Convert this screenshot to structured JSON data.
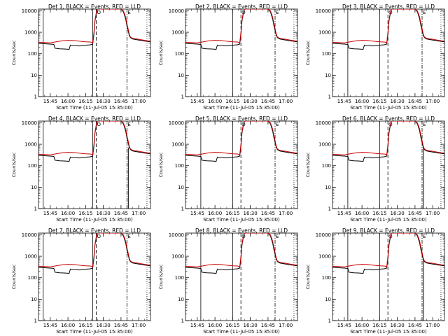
{
  "chart_data": {
    "type": "line",
    "shared": {
      "ylabel": "Counts/sec",
      "xlabel": "Start Time (11-Jul-05 15:35:00)",
      "yscale": "log",
      "ylim": [
        1,
        12000
      ],
      "y_ticks": [
        1,
        10,
        100,
        1000,
        10000
      ],
      "y_tick_labels": [
        "1",
        "10",
        "100",
        "1000",
        "10000"
      ],
      "xlim_minutes": [
        0,
        95
      ],
      "x_tick_minutes": [
        10,
        25,
        40,
        55,
        70,
        85
      ],
      "x_tick_labels": [
        "15:45",
        "16:00",
        "16:15",
        "16:30",
        "16:45",
        "17:00"
      ],
      "grid": false,
      "marker_labels": [
        "O",
        "E"
      ],
      "colors": {
        "events": "#000000",
        "lld": "#cc0000",
        "axes": "#000000"
      }
    },
    "panels": [
      {
        "title": "Det 1, BLACK = Events, RED = LLD",
        "solid": [
          4,
          46
        ],
        "dashed": [
          49
        ],
        "dashdot": [
          75
        ],
        "dotted": [
          92
        ],
        "events_dip": 20
      },
      {
        "title": "Det 2, BLACK = Events, RED = LLD",
        "solid": [
          13,
          40
        ],
        "dashed": [
          47
        ],
        "dashdot": [
          76
        ],
        "dotted": [
          92
        ],
        "events_dip": 20
      },
      {
        "title": "Det 3, BLACK = Events, RED = LLD",
        "solid": [
          13,
          40
        ],
        "dashed": [
          47
        ],
        "dashdot": [
          76
        ],
        "dotted": [
          92
        ],
        "events_dip": 20
      },
      {
        "title": "Det 4, BLACK = Events, RED = LLD",
        "solid": [
          4,
          46
        ],
        "dashed": [
          49
        ],
        "dashdot": [
          75
        ],
        "dotted": [
          92
        ],
        "events_dip": 20
      },
      {
        "title": "Det 5, BLACK = Events, RED = LLD",
        "solid": [
          13,
          40
        ],
        "dashed": [
          47
        ],
        "dashdot": [
          76
        ],
        "dotted": [
          92
        ],
        "events_dip": 20
      },
      {
        "title": "Det 6, BLACK = Events, RED = LLD",
        "solid": [
          13,
          40
        ],
        "dashed": [
          47
        ],
        "dashdot": [
          76
        ],
        "dotted": [
          92
        ],
        "events_dip": 20
      },
      {
        "title": "Det 7, BLACK = Events, RED = LLD",
        "solid": [
          4,
          46
        ],
        "dashed": [
          49
        ],
        "dashdot": [
          75
        ],
        "dotted": [
          92
        ],
        "events_dip": 20
      },
      {
        "title": "Det 8, BLACK = Events, RED = LLD",
        "solid": [
          13,
          40
        ],
        "dashed": [
          47
        ],
        "dashdot": [
          76
        ],
        "dotted": [
          92
        ],
        "events_dip": 20
      },
      {
        "title": "Det 9, BLACK = Events, RED = LLD",
        "solid": [
          13,
          40
        ],
        "dashed": [
          47
        ],
        "dashdot": [
          76
        ],
        "dotted": [
          92
        ],
        "events_dip": 20
      }
    ],
    "series": [
      {
        "key": "lld",
        "points": [
          [
            0,
            340
          ],
          [
            5,
            330
          ],
          [
            10,
            320
          ],
          [
            15,
            360
          ],
          [
            20,
            400
          ],
          [
            25,
            420
          ],
          [
            30,
            410
          ],
          [
            35,
            380
          ],
          [
            40,
            360
          ],
          [
            44,
            350
          ],
          [
            46,
            330
          ],
          [
            47,
            1000
          ],
          [
            48,
            4000
          ],
          [
            49,
            8000
          ],
          [
            50,
            12000
          ],
          [
            55,
            12000
          ],
          [
            60,
            12000
          ],
          [
            65,
            12000
          ],
          [
            70,
            12000
          ],
          [
            72,
            10000
          ],
          [
            74,
            5000
          ],
          [
            75,
            2500
          ],
          [
            76,
            1500
          ],
          [
            77,
            800
          ],
          [
            78,
            600
          ],
          [
            80,
            520
          ],
          [
            85,
            470
          ],
          [
            90,
            420
          ],
          [
            95,
            380
          ]
        ]
      },
      {
        "key": "events",
        "points": [
          [
            0,
            300
          ],
          [
            5,
            290
          ],
          [
            10,
            280
          ],
          [
            13,
            270
          ],
          [
            14,
            180
          ],
          [
            18,
            170
          ],
          [
            22,
            165
          ],
          [
            26,
            160
          ],
          [
            27,
            250
          ],
          [
            30,
            240
          ],
          [
            35,
            230
          ],
          [
            40,
            250
          ],
          [
            44,
            260
          ],
          [
            46,
            280
          ],
          [
            47,
            800
          ],
          [
            48,
            3500
          ],
          [
            49,
            7000
          ],
          [
            50,
            12000
          ],
          [
            55,
            12000
          ],
          [
            60,
            12000
          ],
          [
            65,
            12000
          ],
          [
            70,
            12000
          ],
          [
            72,
            9000
          ],
          [
            74,
            4000
          ],
          [
            75,
            2000
          ],
          [
            76,
            1200
          ],
          [
            77,
            700
          ],
          [
            78,
            560
          ],
          [
            80,
            480
          ],
          [
            85,
            430
          ],
          [
            90,
            390
          ],
          [
            95,
            360
          ]
        ]
      }
    ]
  }
}
